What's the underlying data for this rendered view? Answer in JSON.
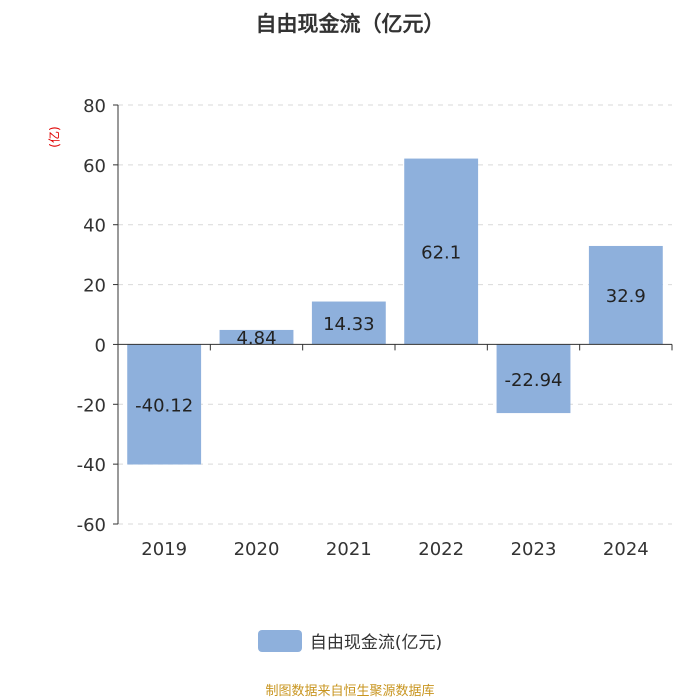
{
  "title": "自由现金流（亿元）",
  "chart_data": {
    "type": "bar",
    "title": "自由现金流（亿元）",
    "xlabel": "",
    "ylabel": "(亿)",
    "categories": [
      "2019",
      "2020",
      "2021",
      "2022",
      "2023",
      "2024"
    ],
    "series": [
      {
        "name": "自由现金流(亿元)",
        "values": [
          -40.12,
          4.84,
          14.33,
          62.1,
          -22.94,
          32.9
        ]
      }
    ],
    "value_labels": [
      "-40.12",
      "4.84",
      "14.33",
      "62.1",
      "-22.94",
      "32.9"
    ],
    "ylim": [
      -60,
      80
    ],
    "yticks": [
      80,
      60,
      40,
      20,
      0,
      -20,
      -40,
      -60
    ],
    "grid": true,
    "legend_position": "bottom-center",
    "bar_color": "#8eb0dc"
  },
  "legend": {
    "label": "自由现金流(亿元)"
  },
  "source": "制图数据来自恒生聚源数据库"
}
